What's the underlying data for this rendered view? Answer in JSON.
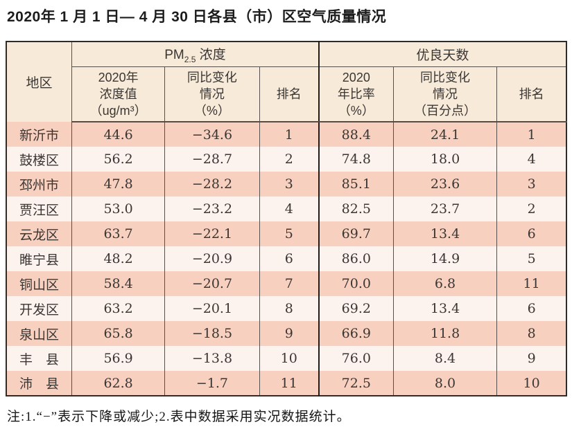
{
  "title": "2020年 1 月 1 日— 4 月 30 日各县（市）区空气质量情况",
  "note": "注:1.“−”表示下降或减少;2.表中数据采用实况数据统计。",
  "colors": {
    "header_bg": "#f7ead9",
    "row_pink": "#f8d0bf",
    "row_light": "#fdf3ee",
    "outer_border": "#2e2b28",
    "inner_line": "#55504b",
    "header_separator": "#5c4a40"
  },
  "table": {
    "corner_header": "地区",
    "group1": {
      "pm": "PM",
      "sub": "2.5",
      "rest": " 浓度"
    },
    "group2": "优良天数",
    "sub_headers": {
      "pm_value": "2020年\n浓度值\n（ug/m³）",
      "pm_change": "同比变化\n情况\n（%）",
      "pm_rank": "排名",
      "ratio_value": "2020\n年比率\n（%）",
      "ratio_change": "同比变化\n情况\n（百分点）",
      "ratio_rank": "排名"
    },
    "col_keys": [
      "region",
      "pm-value",
      "pm-change",
      "pm-rank",
      "ratio-value",
      "ratio-change",
      "ratio-rank"
    ],
    "rows": [
      {
        "region": "新沂市",
        "pm_value": "44.6",
        "pm_change": "−34.6",
        "pm_rank": "1",
        "ratio_value": "88.4",
        "ratio_change": "24.1",
        "ratio_rank": "1"
      },
      {
        "region": "鼓楼区",
        "pm_value": "56.2",
        "pm_change": "−28.7",
        "pm_rank": "2",
        "ratio_value": "74.8",
        "ratio_change": "18.0",
        "ratio_rank": "4"
      },
      {
        "region": "邳州市",
        "pm_value": "47.8",
        "pm_change": "−28.2",
        "pm_rank": "3",
        "ratio_value": "85.1",
        "ratio_change": "23.6",
        "ratio_rank": "3"
      },
      {
        "region": "贾汪区",
        "pm_value": "53.0",
        "pm_change": "−23.2",
        "pm_rank": "4",
        "ratio_value": "82.5",
        "ratio_change": "23.7",
        "ratio_rank": "2"
      },
      {
        "region": "云龙区",
        "pm_value": "63.7",
        "pm_change": "−22.1",
        "pm_rank": "5",
        "ratio_value": "69.7",
        "ratio_change": "13.4",
        "ratio_rank": "6"
      },
      {
        "region": "睢宁县",
        "pm_value": "48.2",
        "pm_change": "−20.9",
        "pm_rank": "6",
        "ratio_value": "86.0",
        "ratio_change": "14.9",
        "ratio_rank": "5"
      },
      {
        "region": "铜山区",
        "pm_value": "58.4",
        "pm_change": "−20.7",
        "pm_rank": "7",
        "ratio_value": "70.0",
        "ratio_change": "6.8",
        "ratio_rank": "11"
      },
      {
        "region": "开发区",
        "pm_value": "63.2",
        "pm_change": "−20.1",
        "pm_rank": "8",
        "ratio_value": "69.2",
        "ratio_change": "13.4",
        "ratio_rank": "6"
      },
      {
        "region": "泉山区",
        "pm_value": "65.8",
        "pm_change": "−18.5",
        "pm_rank": "9",
        "ratio_value": "66.9",
        "ratio_change": "11.8",
        "ratio_rank": "8"
      },
      {
        "region": "丰　县",
        "pm_value": "56.9",
        "pm_change": "−13.8",
        "pm_rank": "10",
        "ratio_value": "76.0",
        "ratio_change": "8.4",
        "ratio_rank": "9"
      },
      {
        "region": "沛　县",
        "pm_value": "62.8",
        "pm_change": "−1.7",
        "pm_rank": "11",
        "ratio_value": "72.5",
        "ratio_change": "8.0",
        "ratio_rank": "10"
      }
    ]
  },
  "chart_data": {
    "type": "table",
    "title": "2020年1月1日—4月30日各县（市）区空气质量情况",
    "columns": [
      "地区",
      "PM2.5浓度 2020年浓度值（ug/m³）",
      "PM2.5浓度 同比变化情况（%）",
      "PM2.5浓度 排名",
      "优良天数 2020年比率（%）",
      "优良天数 同比变化情况（百分点）",
      "优良天数 排名"
    ],
    "rows": [
      [
        "新沂市",
        44.6,
        -34.6,
        1,
        88.4,
        24.1,
        1
      ],
      [
        "鼓楼区",
        56.2,
        -28.7,
        2,
        74.8,
        18.0,
        4
      ],
      [
        "邳州市",
        47.8,
        -28.2,
        3,
        85.1,
        23.6,
        3
      ],
      [
        "贾汪区",
        53.0,
        -23.2,
        4,
        82.5,
        23.7,
        2
      ],
      [
        "云龙区",
        63.7,
        -22.1,
        5,
        69.7,
        13.4,
        6
      ],
      [
        "睢宁县",
        48.2,
        -20.9,
        6,
        86.0,
        14.9,
        5
      ],
      [
        "铜山区",
        58.4,
        -20.7,
        7,
        70.0,
        6.8,
        11
      ],
      [
        "开发区",
        63.2,
        -20.1,
        8,
        69.2,
        13.4,
        6
      ],
      [
        "泉山区",
        65.8,
        -18.5,
        9,
        66.9,
        11.8,
        8
      ],
      [
        "丰县",
        56.9,
        -13.8,
        10,
        76.0,
        8.4,
        9
      ],
      [
        "沛县",
        62.8,
        -1.7,
        11,
        72.5,
        8.0,
        10
      ]
    ],
    "footnote": "注:1.“−”表示下降或减少;2.表中数据采用实况数据统计。"
  }
}
